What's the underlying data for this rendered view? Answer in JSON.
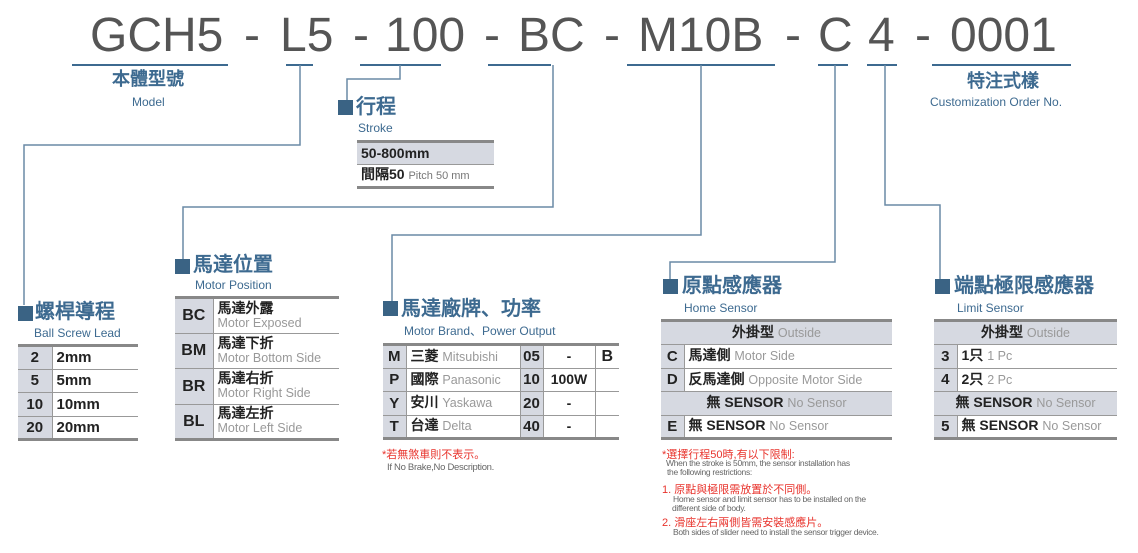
{
  "code": {
    "segments": [
      "GCH5",
      "L5",
      "100",
      "BC",
      "M10B",
      "C",
      "4",
      "0001"
    ],
    "separator": "-"
  },
  "colors": {
    "accent": "#3d6a90",
    "square": "#3a6384",
    "line": "#6a8aa6",
    "table_header": "#d6d9e1",
    "note_red": "#e8332c",
    "code_text": "#555555"
  },
  "model": {
    "title": "本體型號",
    "subtitle": "Model"
  },
  "custom": {
    "title": "特注式樣",
    "subtitle": "Customization Order No."
  },
  "stroke": {
    "title": "行程",
    "subtitle": "Stroke",
    "range": "50-800mm",
    "pitch_cn": "間隔50",
    "pitch_en": "Pitch 50 mm"
  },
  "lead": {
    "title": "螺桿導程",
    "subtitle": "Ball Screw Lead",
    "rows": [
      {
        "code": "2",
        "value": "2mm"
      },
      {
        "code": "5",
        "value": "5mm"
      },
      {
        "code": "10",
        "value": "10mm"
      },
      {
        "code": "20",
        "value": "20mm"
      }
    ]
  },
  "motor_position": {
    "title": "馬達位置",
    "subtitle": "Motor Position",
    "rows": [
      {
        "code": "BC",
        "cn": "馬達外露",
        "en": "Motor Exposed"
      },
      {
        "code": "BM",
        "cn": "馬達下折",
        "en": "Motor Bottom Side"
      },
      {
        "code": "BR",
        "cn": "馬達右折",
        "en": "Motor Right Side"
      },
      {
        "code": "BL",
        "cn": "馬達左折",
        "en": "Motor Left Side"
      }
    ]
  },
  "motor_brand": {
    "title": "馬達廠牌、功率",
    "subtitle": "Motor Brand、Power Output",
    "brake": "B",
    "rows": [
      {
        "code": "M",
        "cn": "三菱",
        "en": "Mitsubishi",
        "pcode": "05",
        "power": "-"
      },
      {
        "code": "P",
        "cn": "國際",
        "en": "Panasonic",
        "pcode": "10",
        "power": "100W"
      },
      {
        "code": "Y",
        "cn": "安川",
        "en": "Yaskawa",
        "pcode": "20",
        "power": "-"
      },
      {
        "code": "T",
        "cn": "台達",
        "en": "Delta",
        "pcode": "40",
        "power": "-"
      }
    ],
    "note_cn": "*若無煞車則不表示。",
    "note_en": "If No Brake,No Description."
  },
  "home_sensor": {
    "title": "原點感應器",
    "subtitle": "Home Sensor",
    "outside_cn": "外掛型",
    "outside_en": "Outside",
    "rows": [
      {
        "code": "C",
        "cn": "馬達側",
        "en": "Motor Side"
      },
      {
        "code": "D",
        "cn": "反馬達側",
        "en": "Opposite Motor Side"
      }
    ],
    "none_cn": "無 SENSOR",
    "none_en": "No Sensor",
    "none_row": {
      "code": "E",
      "cn": "無 SENSOR",
      "en": "No Sensor"
    },
    "notes": {
      "head_cn": "*選擇行程50時,有以下限制:",
      "head_en1": "When the stroke is 50mm, the sensor installation has",
      "head_en2": "the following restrictions:",
      "n1_cn": "1. 原點與極限需放置於不同側。",
      "n1_en1": "Home sensor and limit sensor has to be installed on the",
      "n1_en2": "different side of body.",
      "n2_cn": "2. 滑座左右兩側皆需安裝感應片。",
      "n2_en": "Both sides of slider need to install the sensor trigger device."
    }
  },
  "limit_sensor": {
    "title": "端點極限感應器",
    "subtitle": "Limit Sensor",
    "outside_cn": "外掛型",
    "outside_en": "Outside",
    "rows": [
      {
        "code": "3",
        "cn": "1只",
        "en": "1 Pc"
      },
      {
        "code": "4",
        "cn": "2只",
        "en": "2 Pc"
      }
    ],
    "none_cn": "無 SENSOR",
    "none_en": "No Sensor",
    "none_row": {
      "code": "5",
      "cn": "無 SENSOR",
      "en": "No Sensor"
    }
  }
}
